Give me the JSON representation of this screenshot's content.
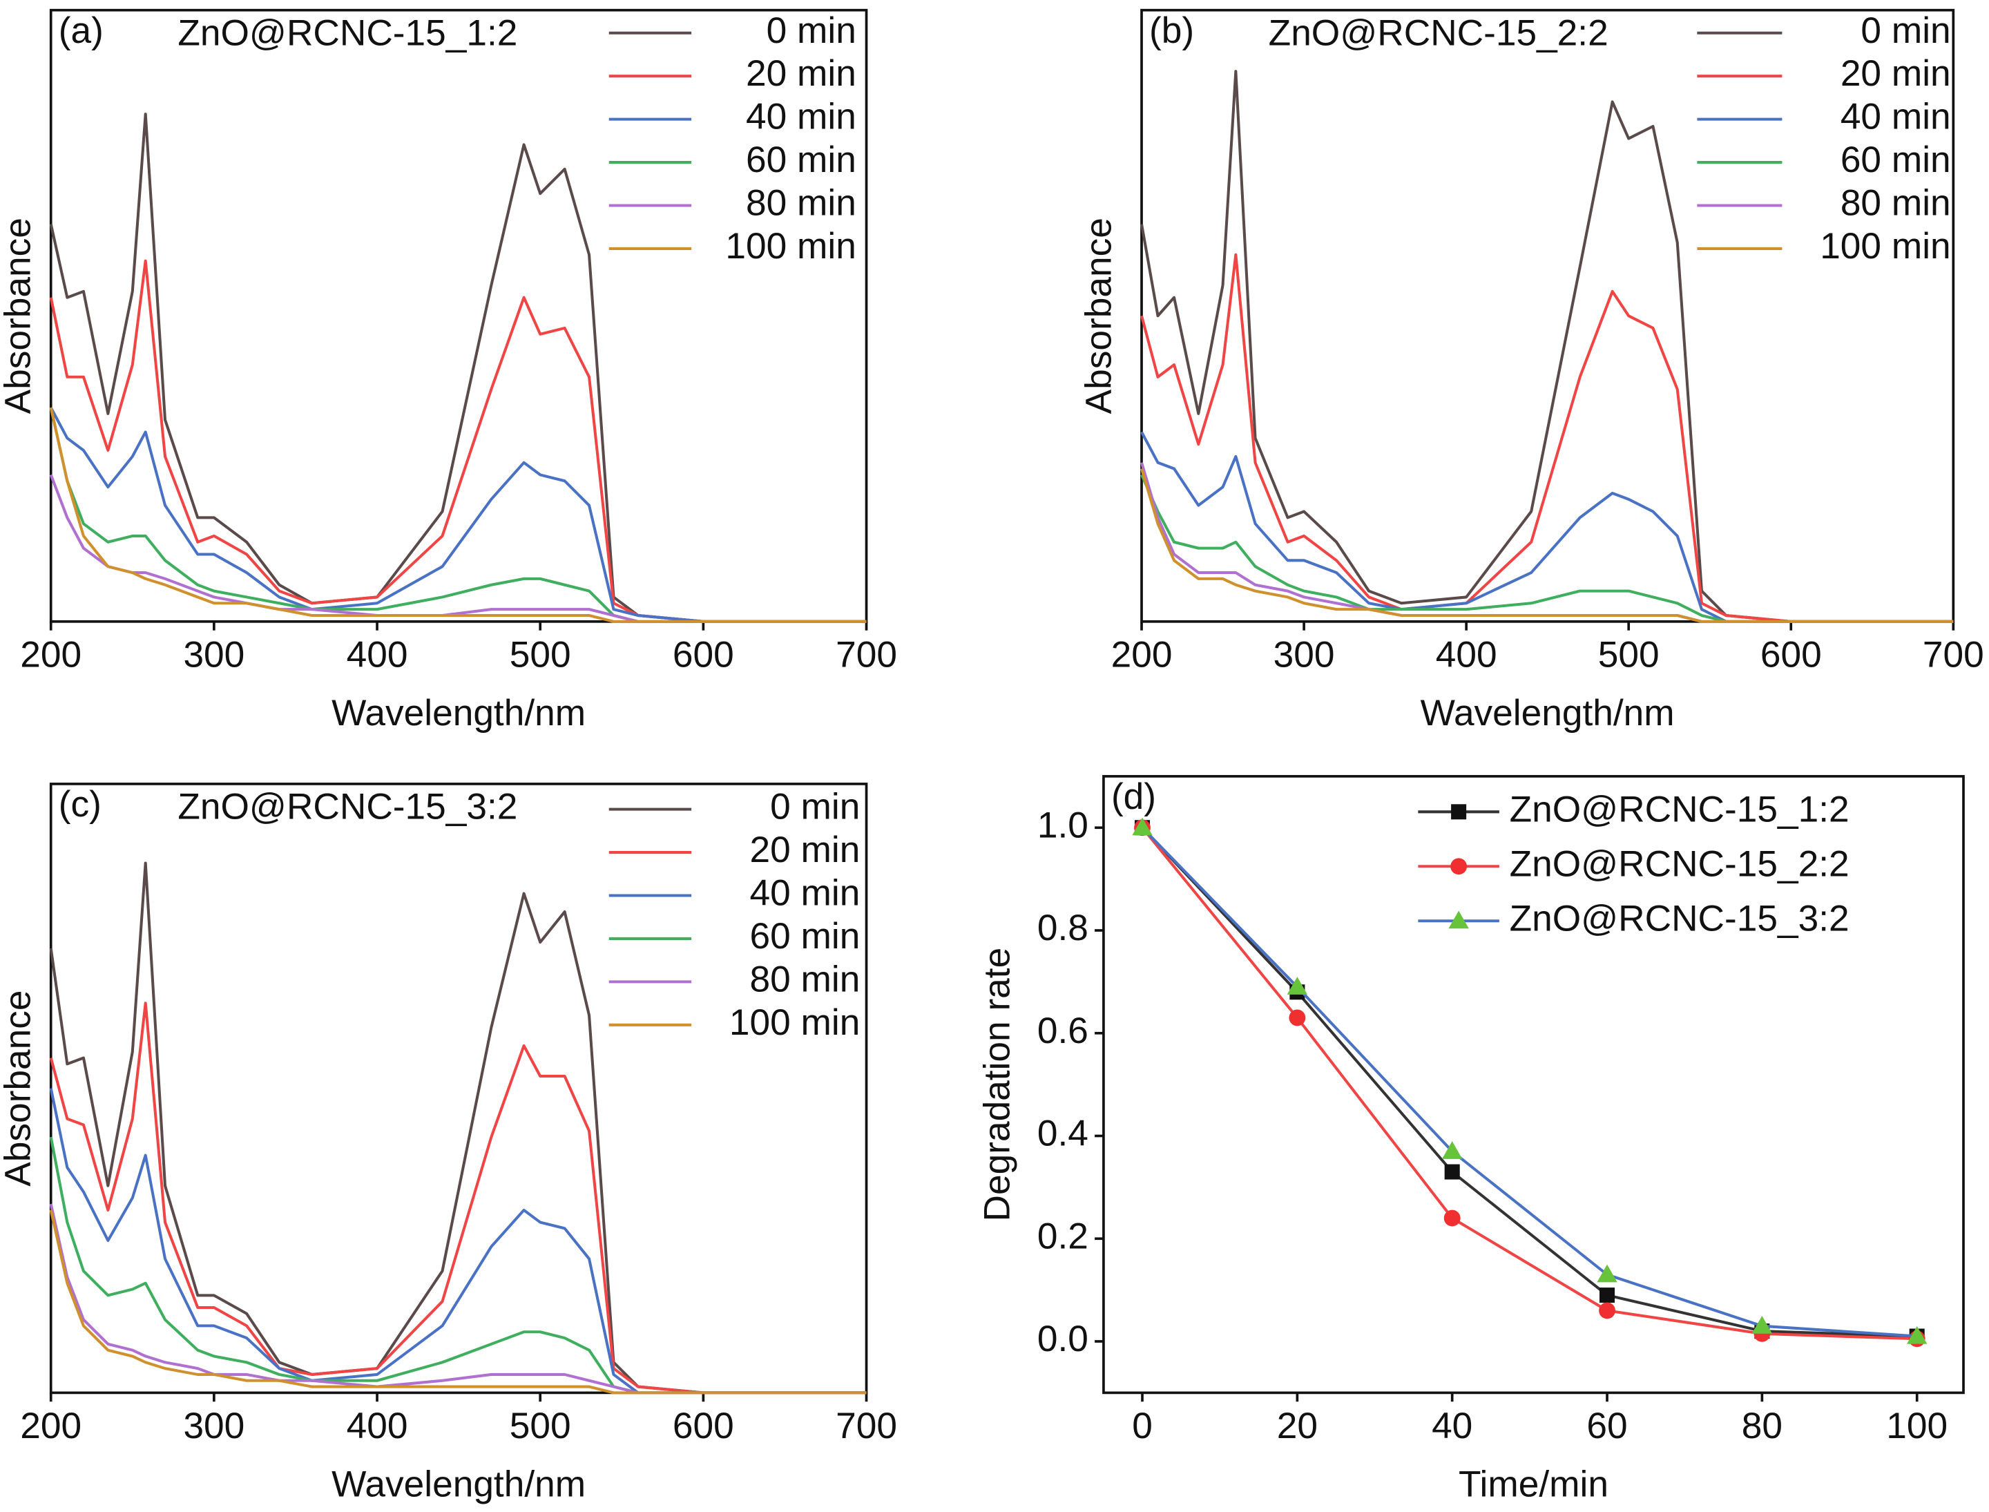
{
  "chart_data": [
    {
      "type": "line",
      "panel_label": "(a)",
      "title": "ZnO@RCNC-15_1:2",
      "xlabel": "Wavelength/nm",
      "ylabel": "Absorbance",
      "xlim": [
        200,
        700
      ],
      "xticks": [
        200,
        300,
        400,
        500,
        600,
        700
      ],
      "ylim": [
        0,
        1
      ],
      "legend": "upper right",
      "x": [
        200,
        210,
        220,
        235,
        250,
        258,
        270,
        290,
        300,
        320,
        340,
        360,
        400,
        440,
        470,
        490,
        500,
        515,
        530,
        545,
        560,
        600,
        700
      ],
      "series": [
        {
          "name": "0 min",
          "color": "#5a4a4a",
          "values": [
            0.65,
            0.53,
            0.54,
            0.34,
            0.54,
            0.83,
            0.33,
            0.17,
            0.17,
            0.13,
            0.06,
            0.03,
            0.04,
            0.18,
            0.55,
            0.78,
            0.7,
            0.74,
            0.6,
            0.04,
            0.01,
            0.0,
            0.0
          ]
        },
        {
          "name": "20 min",
          "color": "#f04545",
          "values": [
            0.53,
            0.4,
            0.4,
            0.28,
            0.42,
            0.59,
            0.27,
            0.13,
            0.14,
            0.11,
            0.05,
            0.03,
            0.04,
            0.14,
            0.38,
            0.53,
            0.47,
            0.48,
            0.4,
            0.03,
            0.01,
            0.0,
            0.0
          ]
        },
        {
          "name": "40 min",
          "color": "#4a72c4",
          "values": [
            0.35,
            0.3,
            0.28,
            0.22,
            0.27,
            0.31,
            0.19,
            0.11,
            0.11,
            0.08,
            0.04,
            0.02,
            0.03,
            0.09,
            0.2,
            0.26,
            0.24,
            0.23,
            0.19,
            0.02,
            0.01,
            0.0,
            0.0
          ]
        },
        {
          "name": "60 min",
          "color": "#3fae5e",
          "values": [
            0.35,
            0.23,
            0.16,
            0.13,
            0.14,
            0.14,
            0.1,
            0.06,
            0.05,
            0.04,
            0.03,
            0.02,
            0.02,
            0.04,
            0.06,
            0.07,
            0.07,
            0.06,
            0.05,
            0.01,
            0.0,
            0.0,
            0.0
          ]
        },
        {
          "name": "80 min",
          "color": "#b070d0",
          "values": [
            0.24,
            0.17,
            0.12,
            0.09,
            0.08,
            0.08,
            0.07,
            0.05,
            0.04,
            0.03,
            0.02,
            0.02,
            0.01,
            0.01,
            0.02,
            0.02,
            0.02,
            0.02,
            0.02,
            0.01,
            0.0,
            0.0,
            0.0
          ]
        },
        {
          "name": "100 min",
          "color": "#d0902e",
          "values": [
            0.35,
            0.23,
            0.14,
            0.09,
            0.08,
            0.07,
            0.06,
            0.04,
            0.03,
            0.03,
            0.02,
            0.01,
            0.01,
            0.01,
            0.01,
            0.01,
            0.01,
            0.01,
            0.01,
            0.0,
            0.0,
            0.0,
            0.0
          ]
        }
      ]
    },
    {
      "type": "line",
      "panel_label": "(b)",
      "title": "ZnO@RCNC-15_2:2",
      "xlabel": "Wavelength/nm",
      "ylabel": "Absorbance",
      "xlim": [
        200,
        700
      ],
      "xticks": [
        200,
        300,
        400,
        500,
        600,
        700
      ],
      "ylim": [
        0,
        1
      ],
      "legend": "upper right",
      "x": [
        200,
        210,
        220,
        235,
        250,
        258,
        270,
        290,
        300,
        320,
        340,
        360,
        400,
        440,
        470,
        490,
        500,
        515,
        530,
        545,
        560,
        600,
        700
      ],
      "series": [
        {
          "name": "0 min",
          "color": "#5a4a4a",
          "values": [
            0.65,
            0.5,
            0.53,
            0.34,
            0.55,
            0.9,
            0.3,
            0.17,
            0.18,
            0.13,
            0.05,
            0.03,
            0.04,
            0.18,
            0.58,
            0.85,
            0.79,
            0.81,
            0.62,
            0.05,
            0.01,
            0.0,
            0.0
          ]
        },
        {
          "name": "20 min",
          "color": "#f04545",
          "values": [
            0.5,
            0.4,
            0.42,
            0.29,
            0.42,
            0.6,
            0.26,
            0.13,
            0.14,
            0.1,
            0.04,
            0.02,
            0.03,
            0.13,
            0.4,
            0.54,
            0.5,
            0.48,
            0.38,
            0.03,
            0.01,
            0.0,
            0.0
          ]
        },
        {
          "name": "40 min",
          "color": "#4a72c4",
          "values": [
            0.31,
            0.26,
            0.25,
            0.19,
            0.22,
            0.27,
            0.16,
            0.1,
            0.1,
            0.08,
            0.03,
            0.02,
            0.03,
            0.08,
            0.17,
            0.21,
            0.2,
            0.18,
            0.14,
            0.02,
            0.0,
            0.0,
            0.0
          ]
        },
        {
          "name": "60 min",
          "color": "#3fae5e",
          "values": [
            0.24,
            0.18,
            0.13,
            0.12,
            0.12,
            0.13,
            0.09,
            0.06,
            0.05,
            0.04,
            0.02,
            0.02,
            0.02,
            0.03,
            0.05,
            0.05,
            0.05,
            0.04,
            0.03,
            0.01,
            0.0,
            0.0,
            0.0
          ]
        },
        {
          "name": "80 min",
          "color": "#b070d0",
          "values": [
            0.26,
            0.17,
            0.11,
            0.08,
            0.08,
            0.08,
            0.06,
            0.05,
            0.04,
            0.03,
            0.02,
            0.01,
            0.01,
            0.01,
            0.01,
            0.01,
            0.01,
            0.01,
            0.01,
            0.0,
            0.0,
            0.0,
            0.0
          ]
        },
        {
          "name": "100 min",
          "color": "#d0902e",
          "values": [
            0.25,
            0.16,
            0.1,
            0.07,
            0.07,
            0.06,
            0.05,
            0.04,
            0.03,
            0.02,
            0.02,
            0.01,
            0.01,
            0.01,
            0.01,
            0.01,
            0.01,
            0.01,
            0.01,
            0.0,
            0.0,
            0.0,
            0.0
          ]
        }
      ]
    },
    {
      "type": "line",
      "panel_label": "(c)",
      "title": "ZnO@RCNC-15_3:2",
      "xlabel": "Wavelength/nm",
      "ylabel": "Absorbance",
      "xlim": [
        200,
        700
      ],
      "xticks": [
        200,
        300,
        400,
        500,
        600,
        700
      ],
      "ylim": [
        0,
        1
      ],
      "legend": "upper right",
      "x": [
        200,
        210,
        220,
        235,
        250,
        258,
        270,
        290,
        300,
        320,
        340,
        360,
        400,
        440,
        470,
        490,
        500,
        515,
        530,
        545,
        560,
        600,
        700
      ],
      "series": [
        {
          "name": "0 min",
          "color": "#5a4a4a",
          "values": [
            0.73,
            0.54,
            0.55,
            0.34,
            0.56,
            0.87,
            0.34,
            0.16,
            0.16,
            0.13,
            0.05,
            0.03,
            0.04,
            0.2,
            0.6,
            0.82,
            0.74,
            0.79,
            0.62,
            0.05,
            0.01,
            0.0,
            0.0
          ]
        },
        {
          "name": "20 min",
          "color": "#f04545",
          "values": [
            0.55,
            0.45,
            0.44,
            0.3,
            0.45,
            0.64,
            0.28,
            0.14,
            0.14,
            0.11,
            0.04,
            0.03,
            0.04,
            0.15,
            0.42,
            0.57,
            0.52,
            0.52,
            0.43,
            0.04,
            0.01,
            0.0,
            0.0
          ]
        },
        {
          "name": "40 min",
          "color": "#4a72c4",
          "values": [
            0.5,
            0.37,
            0.33,
            0.25,
            0.32,
            0.39,
            0.22,
            0.11,
            0.11,
            0.09,
            0.04,
            0.02,
            0.03,
            0.11,
            0.24,
            0.3,
            0.28,
            0.27,
            0.22,
            0.03,
            0.0,
            0.0,
            0.0
          ]
        },
        {
          "name": "60 min",
          "color": "#3fae5e",
          "values": [
            0.42,
            0.28,
            0.2,
            0.16,
            0.17,
            0.18,
            0.12,
            0.07,
            0.06,
            0.05,
            0.03,
            0.02,
            0.02,
            0.05,
            0.08,
            0.1,
            0.1,
            0.09,
            0.07,
            0.01,
            0.0,
            0.0,
            0.0
          ]
        },
        {
          "name": "80 min",
          "color": "#b070d0",
          "values": [
            0.31,
            0.19,
            0.12,
            0.08,
            0.07,
            0.06,
            0.05,
            0.04,
            0.03,
            0.03,
            0.02,
            0.02,
            0.01,
            0.02,
            0.03,
            0.03,
            0.03,
            0.03,
            0.02,
            0.01,
            0.0,
            0.0,
            0.0
          ]
        },
        {
          "name": "100 min",
          "color": "#d0902e",
          "values": [
            0.3,
            0.18,
            0.11,
            0.07,
            0.06,
            0.05,
            0.04,
            0.03,
            0.03,
            0.02,
            0.02,
            0.01,
            0.01,
            0.01,
            0.01,
            0.01,
            0.01,
            0.01,
            0.01,
            0.0,
            0.0,
            0.0,
            0.0
          ]
        }
      ]
    },
    {
      "type": "line",
      "panel_label": "(d)",
      "xlabel": "Time/min",
      "ylabel": "Degradation rate",
      "xlim": [
        -5,
        106
      ],
      "xticks": [
        0,
        20,
        40,
        60,
        80,
        100
      ],
      "ylim": [
        -0.1,
        1.1
      ],
      "yticks": [
        {
          "value": 0,
          "label": "0.0"
        },
        0.2,
        0.4,
        0.6,
        0.8,
        {
          "value": 1,
          "label": "1.0"
        }
      ],
      "legend": "upper right",
      "x": [
        0,
        20,
        40,
        60,
        80,
        100
      ],
      "series": [
        {
          "name": "ZnO@RCNC-15_1:2",
          "color": "#333333",
          "marker": "square",
          "marker_color": "#111111",
          "values": [
            1.0,
            0.68,
            0.33,
            0.09,
            0.02,
            0.01
          ]
        },
        {
          "name": "ZnO@RCNC-15_2:2",
          "color": "#f04545",
          "marker": "circle",
          "marker_color": "#f03030",
          "values": [
            1.0,
            0.63,
            0.24,
            0.06,
            0.015,
            0.005
          ]
        },
        {
          "name": "ZnO@RCNC-15_3:2",
          "color": "#4a72c4",
          "marker": "triangle",
          "marker_color": "#66c33a",
          "values": [
            1.0,
            0.69,
            0.37,
            0.13,
            0.03,
            0.01
          ]
        }
      ]
    }
  ]
}
